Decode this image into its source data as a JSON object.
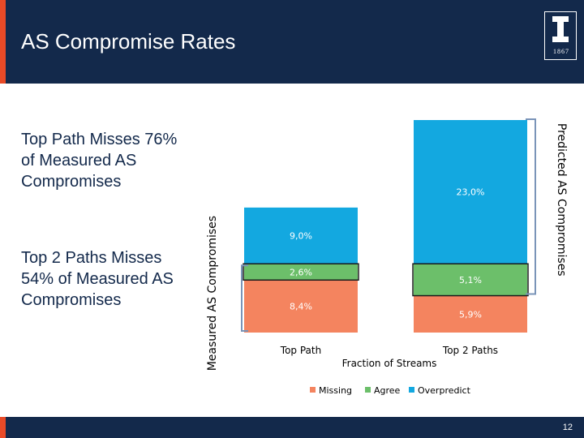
{
  "header": {
    "title": "AS Compromise Rates",
    "logo_year": "1867"
  },
  "sidebar": {
    "top_path_note": "Top Path Misses 76% of Measured AS Compromises",
    "top2_paths_note": "Top 2 Paths Misses 54% of Measured AS Compromises"
  },
  "footer": {
    "page_number": "12"
  },
  "colors": {
    "header_bg": "#13294b",
    "accent": "#e84a27",
    "missing": "#f4845f",
    "agree": "#6cbf6a",
    "overpredict": "#13a8e0"
  },
  "chart_data": {
    "type": "bar",
    "stacked": true,
    "xlabel": "Fraction of Streams",
    "categories": [
      "Top Path",
      "Top 2 Paths"
    ],
    "series": [
      {
        "name": "Missing",
        "values": [
          8.4,
          5.9
        ],
        "labels": [
          "8,4%",
          "5,9%"
        ],
        "color": "#f4845f"
      },
      {
        "name": "Agree",
        "values": [
          2.6,
          5.1
        ],
        "labels": [
          "2,6%",
          "5,1%"
        ],
        "color": "#6cbf6a"
      },
      {
        "name": "Overpredict",
        "values": [
          9.0,
          23.0
        ],
        "labels": [
          "9,0%",
          "23,0%"
        ],
        "color": "#13a8e0"
      }
    ],
    "bracket_labels": {
      "measured": "Measured AS Compromises",
      "predicted": "Predicted AS Compromises"
    },
    "legend": [
      "Missing",
      "Agree",
      "Overpredict"
    ],
    "legend_position": "bottom"
  }
}
